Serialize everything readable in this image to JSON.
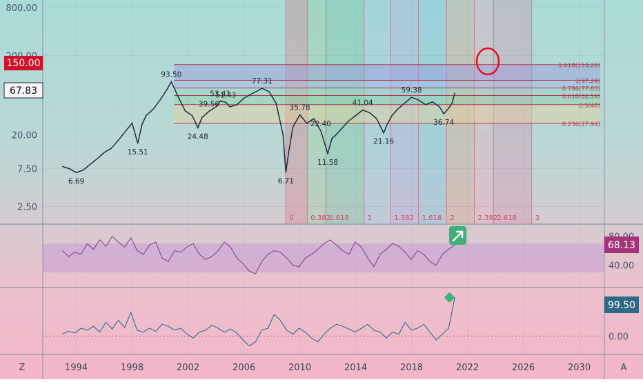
{
  "chart_data": {
    "type": "line",
    "title": "",
    "x_axis": {
      "ticks": [
        "1994",
        "1998",
        "2002",
        "2006",
        "2010",
        "2014",
        "2018",
        "2022",
        "2026",
        "2030"
      ],
      "range": [
        1991.6,
        2031.8
      ]
    },
    "price_pane": {
      "scale": "log",
      "ylim": [
        1.5,
        1000
      ],
      "y_ticks": [
        "800.00",
        "200.00",
        "20.00",
        "7.50",
        "2.50"
      ],
      "last_price": "67.83",
      "highlight_price": "150.00",
      "series": {
        "x": [
          1993.0,
          1993.5,
          1994.0,
          1994.5,
          1995.0,
          1995.5,
          1996.0,
          1996.5,
          1997.0,
          1997.5,
          1998.0,
          1998.4,
          1998.7,
          1999.0,
          1999.5,
          2000.0,
          2000.5,
          2000.8,
          2001.3,
          2001.8,
          2002.3,
          2002.7,
          2003.0,
          2003.5,
          2004.0,
          2004.3,
          2004.7,
          2005.0,
          2005.5,
          2006.0,
          2006.5,
          2007.0,
          2007.3,
          2007.8,
          2008.3,
          2008.8,
          2009.0,
          2009.2,
          2009.5,
          2010.0,
          2010.5,
          2011.0,
          2011.5,
          2012.0,
          2012.3,
          2012.6,
          2013.0,
          2013.5,
          2014.0,
          2014.5,
          2015.0,
          2015.5,
          2016.0,
          2016.3,
          2016.6,
          2017.0,
          2017.5,
          2018.0,
          2018.5,
          2019.0,
          2019.5,
          2020.0,
          2020.3,
          2020.6,
          2020.9,
          2021.1
        ],
        "y": [
          8.0,
          7.5,
          6.69,
          7.2,
          8.5,
          10.0,
          12.0,
          13.5,
          17.0,
          22.0,
          28.0,
          15.51,
          27.0,
          35.0,
          42.0,
          55.0,
          75.0,
          93.5,
          60.0,
          40.0,
          35.0,
          24.48,
          33.0,
          39.56,
          45.0,
          53.41,
          51.43,
          45.0,
          48.0,
          58.0,
          65.0,
          72.0,
          77.31,
          70.0,
          50.0,
          20.0,
          6.71,
          12.0,
          25.0,
          35.78,
          28.0,
          32.0,
          22.4,
          11.58,
          18.0,
          20.0,
          24.0,
          30.0,
          35.0,
          41.04,
          38.0,
          32.0,
          21.16,
          28.0,
          35.0,
          42.0,
          50.0,
          59.38,
          55.0,
          48.0,
          52.0,
          45.0,
          36.74,
          42.0,
          50.0,
          67.83
        ]
      },
      "labels": [
        "6.69",
        "15.51",
        "93.50",
        "24.48",
        "53.41",
        "51.43",
        "39.56",
        "77.31",
        "6.71",
        "35.78",
        "22.40",
        "11.58",
        "41.04",
        "59.38",
        "21.16",
        "36.74"
      ],
      "fib_retracement": [
        {
          "label": "1.618(153.29)",
          "value": 153.29
        },
        {
          "label": "1(97.24)",
          "value": 97.24
        },
        {
          "label": "0.786(77.83)",
          "value": 77.83
        },
        {
          "label": "0.618(62.59)",
          "value": 62.59
        },
        {
          "label": "0.5(48)",
          "value": 48
        },
        {
          "label": "0.236(27.94)",
          "value": 27.94
        }
      ],
      "fib_time_zones": [
        "0",
        "0.382",
        "0.618",
        "1",
        "1.382",
        "1.618",
        "2",
        "2.382",
        "2.618",
        "3"
      ]
    },
    "rsi_pane": {
      "y_ticks": [
        "80.00",
        "40.00"
      ],
      "last_value": "68.13",
      "band": [
        30,
        70
      ],
      "series": [
        60,
        52,
        58,
        55,
        70,
        62,
        75,
        66,
        80,
        72,
        65,
        78,
        60,
        55,
        68,
        72,
        50,
        45,
        60,
        58,
        65,
        70,
        55,
        48,
        52,
        60,
        72,
        65,
        50,
        42,
        32,
        28,
        45,
        55,
        60,
        58,
        50,
        40,
        38,
        50,
        55,
        62,
        70,
        75,
        68,
        60,
        55,
        72,
        65,
        50,
        38,
        55,
        62,
        70,
        66,
        58,
        48,
        60,
        55,
        45,
        40,
        55,
        62,
        68.13
      ]
    },
    "oscillator_pane": {
      "y_ticks": [
        "0.00"
      ],
      "last_value": "99.50",
      "series": [
        5,
        12,
        8,
        20,
        15,
        25,
        10,
        35,
        18,
        40,
        22,
        60,
        15,
        10,
        20,
        12,
        30,
        25,
        15,
        20,
        5,
        -5,
        10,
        15,
        28,
        20,
        10,
        18,
        8,
        -10,
        -25,
        -15,
        15,
        20,
        55,
        40,
        15,
        5,
        20,
        10,
        -5,
        -15,
        5,
        20,
        30,
        25,
        18,
        10,
        20,
        30,
        15,
        10,
        -5,
        10,
        5,
        35,
        15,
        20,
        30,
        10,
        -10,
        5,
        20,
        99.5
      ]
    }
  },
  "ui": {
    "scale_mode_left": "Z",
    "scale_mode_right": "A"
  },
  "colors": {
    "price_line": "#1f2a3c",
    "fib_line": "#b03a52",
    "rsi_line": "#8b3f8f",
    "osc_line": "#2c6f8f",
    "highlight_badge": "#d0112b",
    "rsi_badge": "#a43377",
    "osc_badge": "#2e6a86"
  }
}
